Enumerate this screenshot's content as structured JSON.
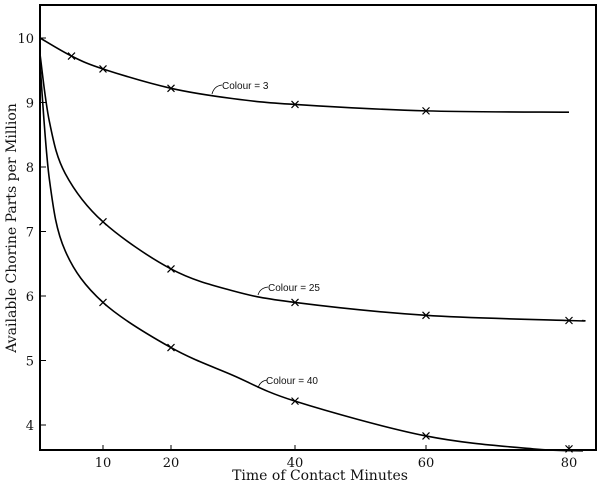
{
  "chart_data": {
    "type": "line",
    "title": "",
    "xlabel": "Time of Contact Minutes",
    "ylabel": "Available Chorine Parts per Million",
    "xlim": [
      0,
      82
    ],
    "ylim": [
      3.6,
      10.5
    ],
    "x_ticks": [
      10,
      20,
      40,
      60,
      80
    ],
    "y_ticks": [
      4,
      5,
      6,
      7,
      8,
      9,
      10
    ],
    "grid": false,
    "series": [
      {
        "name": "Colour = 3",
        "markers": [
          [
            5,
            9.72
          ],
          [
            10,
            9.52
          ],
          [
            20,
            9.22
          ],
          [
            40,
            8.97
          ],
          [
            60,
            8.87
          ]
        ],
        "curve": [
          [
            0,
            10.0
          ],
          [
            5,
            9.72
          ],
          [
            10,
            9.52
          ],
          [
            20,
            9.22
          ],
          [
            30,
            9.06
          ],
          [
            40,
            8.97
          ],
          [
            60,
            8.87
          ],
          [
            80,
            8.85
          ]
        ]
      },
      {
        "name": "Colour = 25",
        "markers": [
          [
            10,
            7.15
          ],
          [
            20,
            6.42
          ],
          [
            40,
            5.9
          ],
          [
            60,
            5.7
          ],
          [
            80,
            5.62
          ]
        ],
        "curve": [
          [
            0,
            9.75
          ],
          [
            1.5,
            8.7
          ],
          [
            4,
            7.9
          ],
          [
            10,
            7.15
          ],
          [
            20,
            6.42
          ],
          [
            30,
            6.08
          ],
          [
            40,
            5.9
          ],
          [
            60,
            5.7
          ],
          [
            80,
            5.62
          ],
          [
            82,
            5.62
          ]
        ]
      },
      {
        "name": "Colour = 40",
        "markers": [
          [
            10,
            5.9
          ],
          [
            20,
            5.2
          ],
          [
            40,
            4.37
          ],
          [
            60,
            3.83
          ],
          [
            80,
            3.63
          ]
        ],
        "curve": [
          [
            0,
            9.6
          ],
          [
            1.5,
            7.8
          ],
          [
            4,
            6.7
          ],
          [
            10,
            5.9
          ],
          [
            20,
            5.2
          ],
          [
            30,
            4.77
          ],
          [
            40,
            4.37
          ],
          [
            60,
            3.83
          ],
          [
            75,
            3.63
          ],
          [
            82,
            3.6
          ]
        ]
      }
    ],
    "annotations": [
      "Colour = 3",
      "Colour = 25",
      "Colour = 40"
    ]
  }
}
